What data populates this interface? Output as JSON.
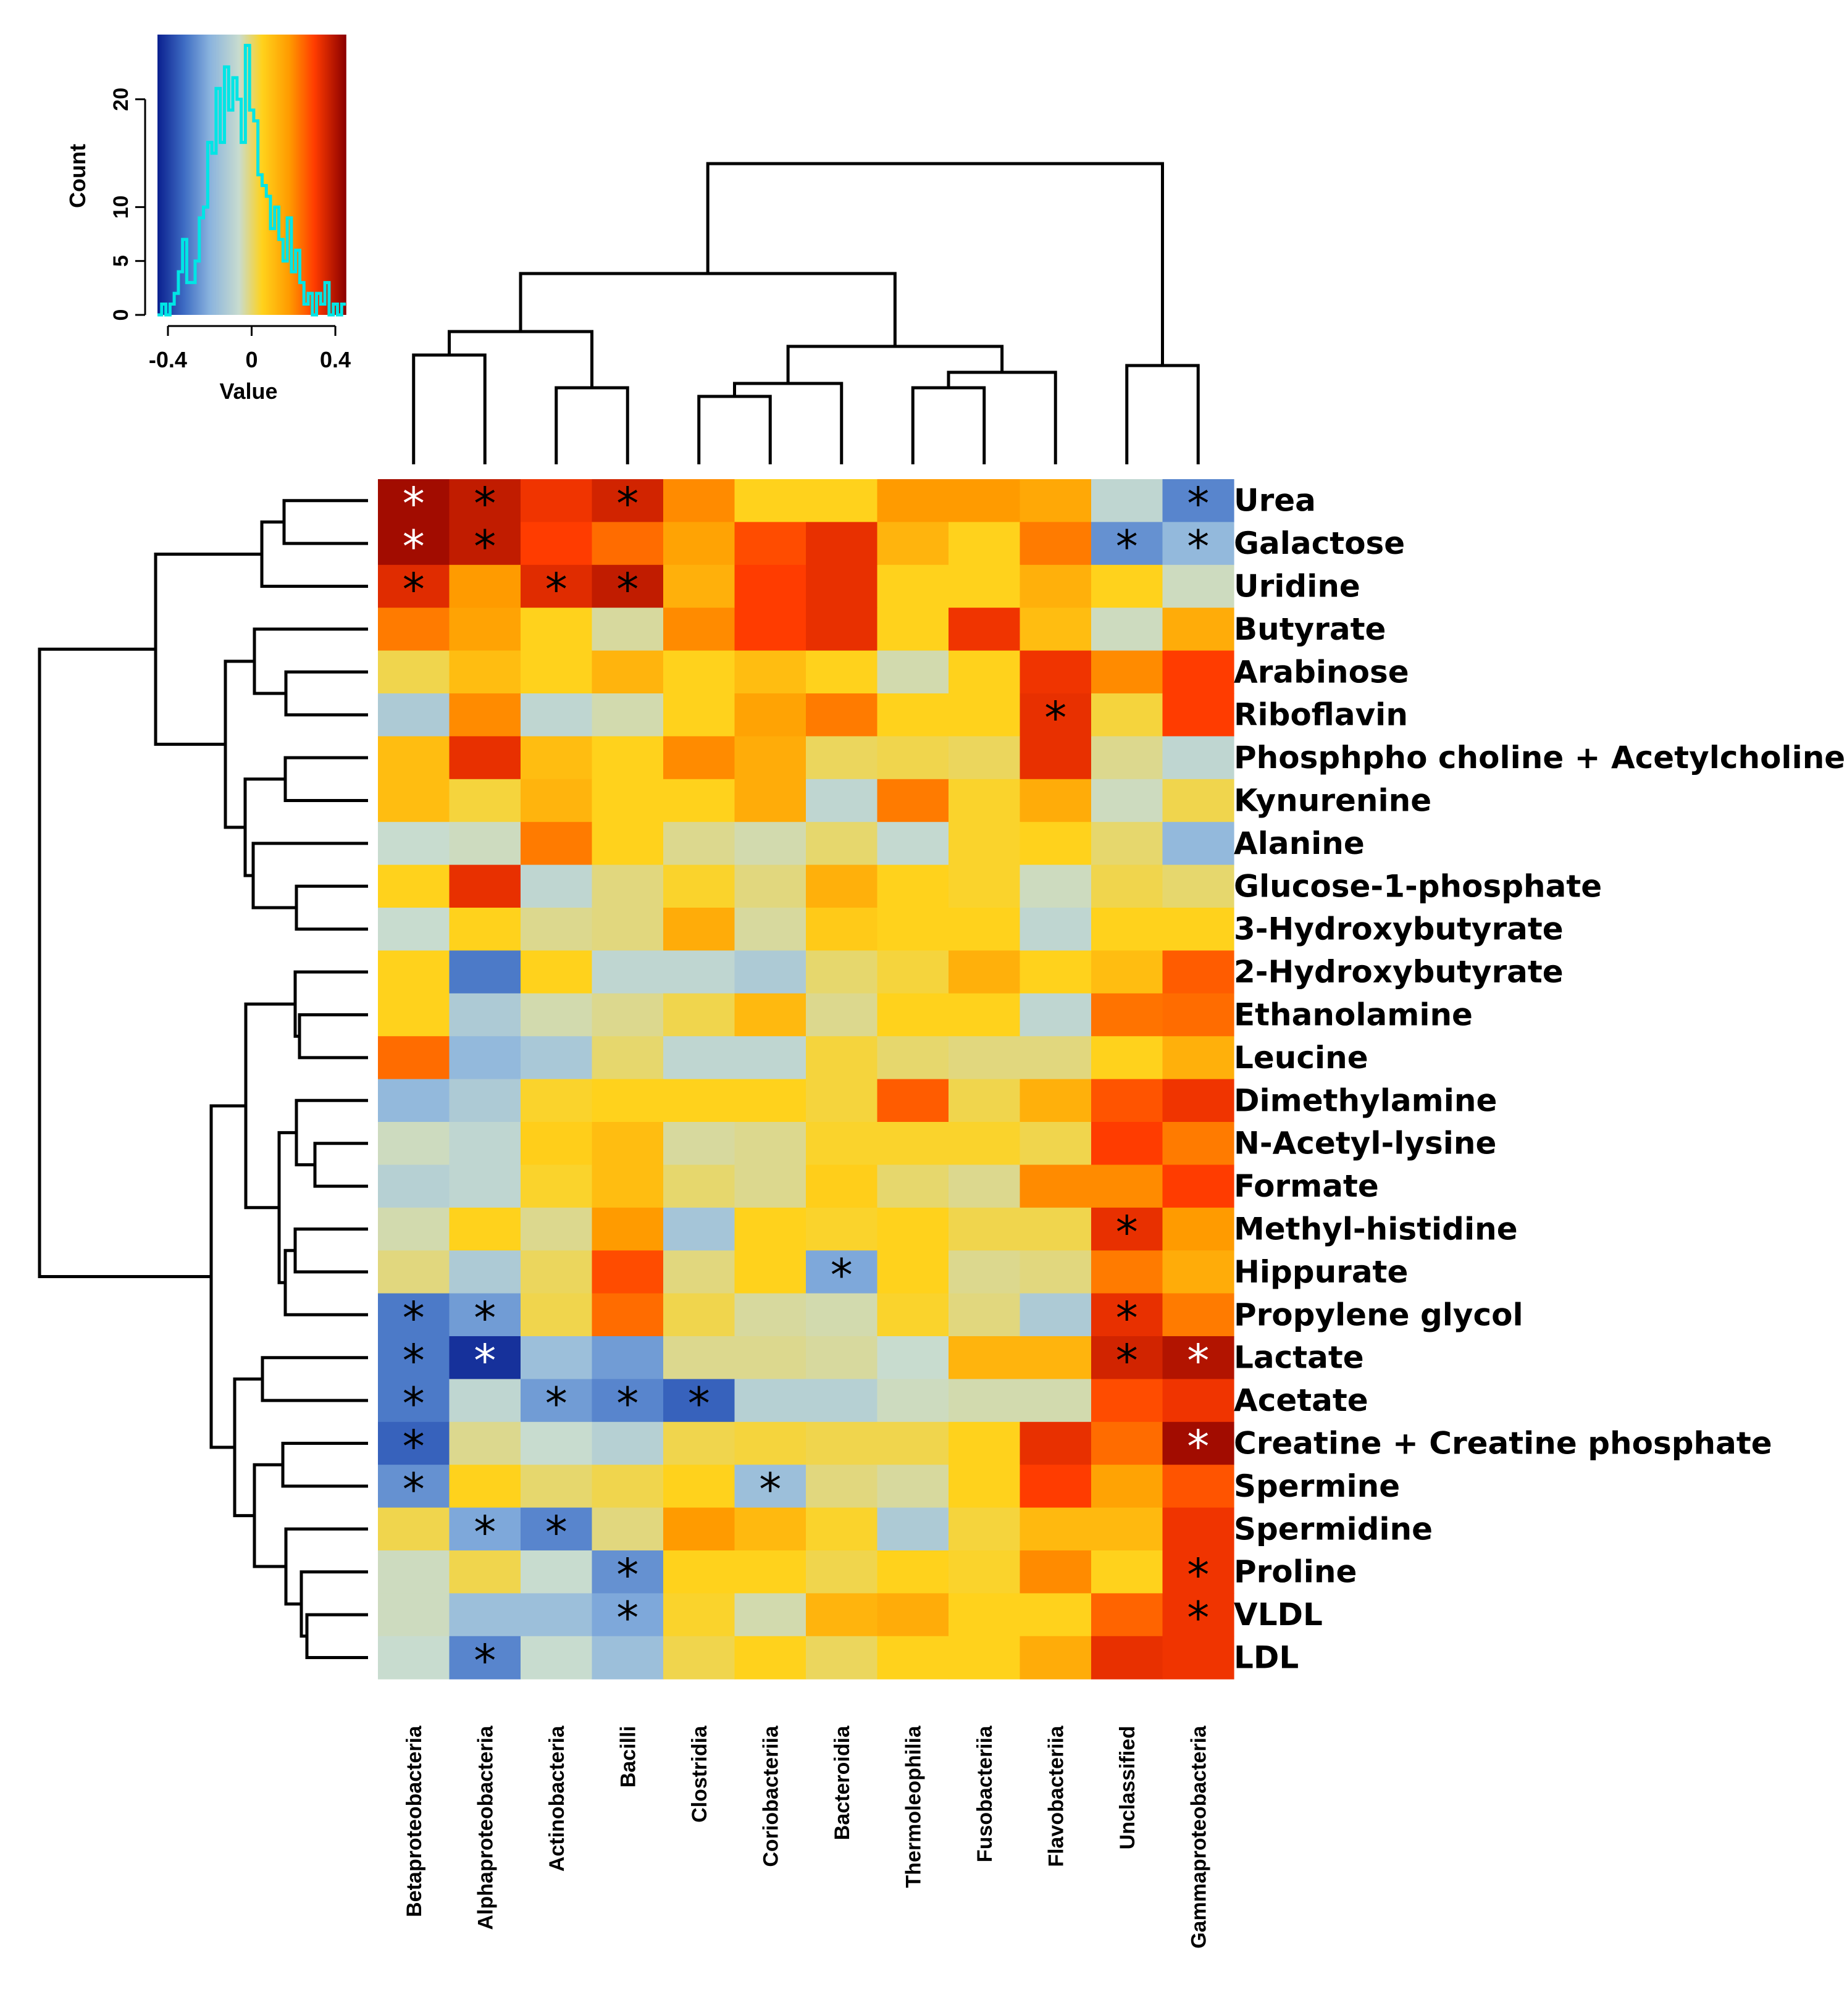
{
  "chart_data": {
    "type": "heatmap",
    "title": "",
    "columns": [
      "Betaproteobacteria",
      "Alphaproteobacteria",
      "Actinobacteria",
      "Bacilli",
      "Clostridia",
      "Coriobacteriia",
      "Bacteroidia",
      "Thermoleophilia",
      "Fusobacteriia",
      "Flavobacteriia",
      "Unclassified",
      "Gammaproteobacteria"
    ],
    "rows": [
      "Urea",
      "Galactose",
      "Uridine",
      "Butyrate",
      "Arabinose",
      "Riboflavin",
      "Phosphpho choline + Acetylcholine",
      "Kynurenine",
      "Alanine",
      "Glucose-1-phosphate",
      "3-Hydroxybutyrate",
      "2-Hydroxybutyrate",
      "Ethanolamine",
      "Leucine",
      "Dimethylamine",
      "N-Acetyl-lysine",
      "Formate",
      "Methyl-histidine",
      "Hippurate",
      "Propylene glycol",
      "Lactate",
      "Acetate",
      "Creatine + Creatine phosphate",
      "Spermine",
      "Spermidine",
      "Proline",
      "VLDL",
      "LDL"
    ],
    "values": [
      [
        0.42,
        0.38,
        0.32,
        0.36,
        0.2,
        0.05,
        0.05,
        0.18,
        0.18,
        0.15,
        -0.08,
        -0.28
      ],
      [
        0.42,
        0.38,
        0.3,
        0.24,
        0.16,
        0.28,
        0.33,
        0.12,
        0.05,
        0.22,
        -0.26,
        -0.18
      ],
      [
        0.34,
        0.18,
        0.34,
        0.38,
        0.13,
        0.3,
        0.33,
        0.05,
        0.05,
        0.13,
        0.05,
        -0.05
      ],
      [
        0.22,
        0.16,
        0.05,
        -0.03,
        0.2,
        0.3,
        0.33,
        0.05,
        0.32,
        0.1,
        -0.05,
        0.14
      ],
      [
        0.02,
        0.1,
        0.05,
        0.12,
        0.05,
        0.1,
        0.05,
        -0.04,
        0.05,
        0.32,
        0.2,
        0.3
      ],
      [
        -0.12,
        0.2,
        -0.08,
        -0.04,
        0.05,
        0.16,
        0.22,
        0.05,
        0.05,
        0.33,
        0.03,
        0.3
      ],
      [
        0.1,
        0.33,
        0.1,
        0.05,
        0.2,
        0.14,
        0.01,
        0.02,
        0.01,
        0.33,
        -0.02,
        -0.08
      ],
      [
        0.1,
        0.03,
        0.12,
        0.05,
        0.05,
        0.14,
        -0.08,
        0.22,
        0.04,
        0.14,
        -0.05,
        0.02
      ],
      [
        -0.06,
        -0.05,
        0.22,
        0.05,
        -0.02,
        -0.04,
        0.0,
        -0.07,
        0.04,
        0.05,
        0.0,
        -0.18
      ],
      [
        0.05,
        0.33,
        -0.08,
        -0.01,
        0.04,
        -0.01,
        0.13,
        0.05,
        0.04,
        -0.05,
        0.02,
        0.0
      ],
      [
        -0.06,
        0.05,
        -0.02,
        -0.01,
        0.14,
        -0.03,
        0.07,
        0.05,
        0.05,
        -0.08,
        0.05,
        0.05
      ],
      [
        0.05,
        -0.3,
        0.05,
        -0.08,
        -0.08,
        -0.12,
        0.0,
        0.03,
        0.13,
        0.05,
        0.1,
        0.26
      ],
      [
        0.05,
        -0.12,
        -0.04,
        -0.02,
        0.02,
        0.11,
        -0.02,
        0.05,
        0.05,
        -0.08,
        0.23,
        0.24
      ],
      [
        0.24,
        -0.18,
        -0.13,
        0.0,
        -0.08,
        -0.08,
        0.03,
        0.0,
        -0.01,
        -0.01,
        0.05,
        0.13
      ],
      [
        -0.18,
        -0.12,
        0.04,
        0.05,
        0.05,
        0.05,
        0.03,
        0.26,
        0.02,
        0.13,
        0.27,
        0.32
      ],
      [
        -0.05,
        -0.08,
        0.06,
        0.1,
        -0.03,
        -0.02,
        0.04,
        0.04,
        0.04,
        0.02,
        0.3,
        0.22
      ],
      [
        -0.1,
        -0.08,
        0.04,
        0.1,
        0.0,
        -0.02,
        0.06,
        0.0,
        -0.02,
        0.2,
        0.2,
        0.3
      ],
      [
        -0.04,
        0.05,
        -0.02,
        0.18,
        -0.14,
        0.05,
        0.04,
        0.05,
        0.02,
        0.02,
        0.33,
        0.18
      ],
      [
        -0.01,
        -0.12,
        0.01,
        0.28,
        -0.01,
        0.05,
        -0.22,
        0.05,
        -0.02,
        -0.01,
        0.22,
        0.14
      ],
      [
        -0.3,
        -0.24,
        0.02,
        0.24,
        0.02,
        -0.03,
        -0.04,
        0.04,
        -0.01,
        -0.12,
        0.33,
        0.22
      ],
      [
        -0.3,
        -0.42,
        -0.16,
        -0.24,
        -0.02,
        -0.02,
        -0.03,
        -0.06,
        0.12,
        0.12,
        0.36,
        0.4
      ],
      [
        -0.3,
        -0.08,
        -0.24,
        -0.28,
        -0.34,
        -0.1,
        -0.1,
        -0.05,
        -0.04,
        -0.04,
        0.28,
        0.32
      ],
      [
        -0.34,
        -0.02,
        -0.06,
        -0.1,
        0.02,
        0.03,
        0.02,
        0.02,
        0.05,
        0.33,
        0.24,
        0.42
      ],
      [
        -0.26,
        0.05,
        0.0,
        0.02,
        0.05,
        -0.16,
        -0.01,
        -0.03,
        0.05,
        0.3,
        0.16,
        0.27
      ],
      [
        0.02,
        -0.22,
        -0.28,
        -0.01,
        0.18,
        0.11,
        0.04,
        -0.12,
        0.03,
        0.11,
        0.11,
        0.32
      ],
      [
        -0.05,
        0.02,
        -0.06,
        -0.26,
        0.05,
        0.05,
        0.02,
        0.05,
        0.04,
        0.2,
        0.05,
        0.32
      ],
      [
        -0.05,
        -0.16,
        -0.16,
        -0.22,
        0.04,
        -0.04,
        0.12,
        0.14,
        0.05,
        0.05,
        0.25,
        0.32
      ],
      [
        -0.06,
        -0.28,
        -0.06,
        -0.16,
        0.02,
        0.05,
        0.01,
        0.05,
        0.05,
        0.14,
        0.33,
        0.32
      ]
    ],
    "significant": [
      [
        0,
        0
      ],
      [
        0,
        1
      ],
      [
        0,
        3
      ],
      [
        0,
        11
      ],
      [
        1,
        0
      ],
      [
        1,
        1
      ],
      [
        1,
        10
      ],
      [
        1,
        11
      ],
      [
        2,
        0
      ],
      [
        2,
        2
      ],
      [
        2,
        3
      ],
      [
        5,
        9
      ],
      [
        17,
        10
      ],
      [
        18,
        6
      ],
      [
        19,
        0
      ],
      [
        19,
        1
      ],
      [
        19,
        10
      ],
      [
        20,
        0
      ],
      [
        20,
        1
      ],
      [
        20,
        10
      ],
      [
        20,
        11
      ],
      [
        21,
        0
      ],
      [
        21,
        2
      ],
      [
        21,
        3
      ],
      [
        21,
        4
      ],
      [
        22,
        0
      ],
      [
        22,
        11
      ],
      [
        23,
        0
      ],
      [
        23,
        5
      ],
      [
        24,
        1
      ],
      [
        24,
        2
      ],
      [
        25,
        3
      ],
      [
        25,
        11
      ],
      [
        26,
        3
      ],
      [
        26,
        11
      ],
      [
        27,
        1
      ]
    ],
    "significance_marker": "*",
    "color_key": {
      "xlabel": "Value",
      "ylabel": "Count",
      "xticks": [
        "-0.4",
        "0",
        "0.4"
      ],
      "xtick_values": [
        -0.4,
        0,
        0.4
      ],
      "yticks": [
        "0",
        "5",
        "10",
        "20"
      ],
      "ytick_values": [
        0,
        5,
        10,
        20
      ],
      "xlim": [
        -0.45,
        0.45
      ],
      "ylim": [
        0,
        26
      ],
      "histogram_bins": [
        -0.45,
        -0.43,
        -0.41,
        -0.39,
        -0.37,
        -0.35,
        -0.33,
        -0.31,
        -0.29,
        -0.27,
        -0.25,
        -0.23,
        -0.21,
        -0.19,
        -0.17,
        -0.15,
        -0.13,
        -0.11,
        -0.09,
        -0.07,
        -0.05,
        -0.03,
        -0.01,
        0.01,
        0.03,
        0.05,
        0.07,
        0.09,
        0.11,
        0.13,
        0.15,
        0.17,
        0.19,
        0.21,
        0.23,
        0.25,
        0.27,
        0.29,
        0.31,
        0.33,
        0.35,
        0.37,
        0.39,
        0.41,
        0.43,
        0.45
      ],
      "histogram_counts": [
        0,
        1,
        0,
        1,
        2,
        4,
        7,
        3,
        3,
        5,
        9,
        10,
        16,
        15,
        21,
        16,
        23,
        19,
        22,
        20,
        16,
        25,
        19,
        18,
        13,
        12,
        11,
        8,
        10,
        7,
        5,
        9,
        4,
        6,
        3,
        1,
        2,
        0,
        2,
        1,
        3,
        0,
        1,
        0,
        1
      ],
      "line_color": "#00e5e5"
    },
    "palette": [
      "#0a1f8f",
      "#3f6ec4",
      "#8ab3de",
      "#c8dccf",
      "#ffd21c",
      "#ff9b00",
      "#ff3c00",
      "#8b0000"
    ],
    "palette_stops": [
      -0.45,
      -0.32,
      -0.2,
      -0.06,
      0.05,
      0.18,
      0.3,
      0.45
    ]
  }
}
